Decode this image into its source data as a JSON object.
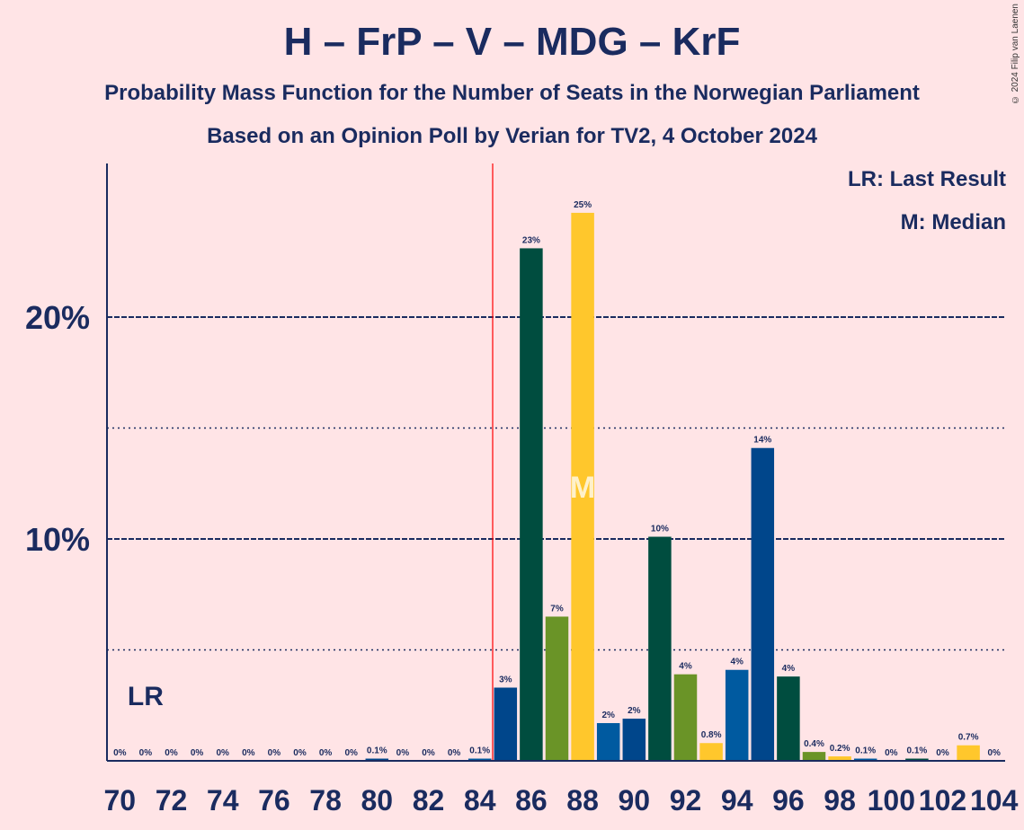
{
  "title": "H – FrP – V – MDG – KrF",
  "subtitle": "Probability Mass Function for the Number of Seats in the Norwegian Parliament",
  "subtitle2": "Based on an Opinion Poll by Verian for TV2, 4 October 2024",
  "copyright": "© 2024 Filip van Laenen",
  "legend": {
    "last_result": "LR: Last Result",
    "median": "M: Median"
  },
  "markers": {
    "last_result_label": "LR",
    "last_result_seat": 71,
    "median_label": "M",
    "median_seat": 88,
    "majority_line_x": 84.5
  },
  "colors": {
    "background": "#FFE4E6",
    "text": "#1A2B5F",
    "majority_line": "#FF0000",
    "palette": [
      "#00468B",
      "#004D3F",
      "#6A9427",
      "#FFC72C",
      "#005AA0"
    ]
  },
  "chart_data": {
    "type": "bar",
    "x": [
      70,
      71,
      72,
      73,
      74,
      75,
      76,
      77,
      78,
      79,
      80,
      81,
      82,
      83,
      84,
      85,
      86,
      87,
      88,
      89,
      90,
      91,
      92,
      93,
      94,
      95,
      96,
      97,
      98,
      99,
      100,
      101,
      102,
      103,
      104
    ],
    "values": [
      0,
      0,
      0,
      0,
      0,
      0,
      0,
      0,
      0,
      0,
      0.1,
      0,
      0,
      0,
      0.1,
      3.3,
      23.1,
      6.5,
      24.7,
      1.7,
      1.9,
      10.1,
      3.9,
      0.8,
      4.1,
      14.1,
      3.8,
      0.4,
      0.2,
      0.1,
      0,
      0.1,
      0,
      0.7,
      0
    ],
    "labels": [
      "0%",
      "0%",
      "0%",
      "0%",
      "0%",
      "0%",
      "0%",
      "0%",
      "0%",
      "0%",
      "0.1%",
      "0%",
      "0%",
      "0%",
      "0.1%",
      "3%",
      "23%",
      "7%",
      "25%",
      "2%",
      "2%",
      "10%",
      "4%",
      "0.8%",
      "4%",
      "14%",
      "4%",
      "0.4%",
      "0.2%",
      "0.1%",
      "0%",
      "0.1%",
      "0%",
      "0.7%",
      "0%"
    ],
    "color_index": [
      0,
      1,
      2,
      3,
      4,
      0,
      1,
      2,
      3,
      4,
      0,
      1,
      2,
      3,
      4,
      0,
      1,
      2,
      3,
      4,
      0,
      1,
      2,
      3,
      4,
      0,
      1,
      2,
      3,
      4,
      0,
      1,
      2,
      3,
      4
    ],
    "xticks": [
      70,
      72,
      74,
      76,
      78,
      80,
      82,
      84,
      86,
      88,
      90,
      92,
      94,
      96,
      98,
      100,
      102,
      104
    ],
    "xtick_labels": [
      "70",
      "72",
      "74",
      "76",
      "78",
      "80",
      "82",
      "84",
      "86",
      "88",
      "90",
      "92",
      "94",
      "96",
      "98",
      "100",
      "102",
      "104"
    ],
    "yticks": [
      10,
      20
    ],
    "ytick_labels": [
      "10%",
      "20%"
    ],
    "ylim": [
      0,
      27
    ],
    "grid_solid": [
      10,
      20
    ],
    "grid_dotted": [
      5,
      15
    ]
  }
}
